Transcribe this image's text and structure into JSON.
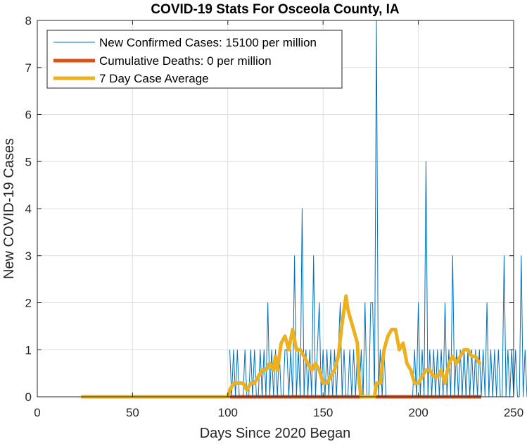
{
  "chart_data": {
    "type": "line",
    "title": "COVID-19 Stats For Osceola County, IA",
    "xlabel": "Days Since 2020 Began",
    "ylabel": "New COVID-19 Cases",
    "xlim": [
      0,
      250
    ],
    "ylim": [
      0,
      8
    ],
    "xticks": [
      0,
      50,
      100,
      150,
      200,
      250
    ],
    "yticks": [
      0,
      1,
      2,
      3,
      4,
      5,
      6,
      7,
      8
    ],
    "grid": true,
    "legend_position": "top-left",
    "series": [
      {
        "name": "New Confirmed Cases: 15100 per million",
        "color": "#0072BD",
        "x_start": 101,
        "values": [
          1,
          0,
          1,
          0,
          1,
          0,
          0,
          0,
          1,
          0,
          0,
          1,
          0,
          1,
          0,
          0,
          1,
          0,
          1,
          0,
          2,
          0,
          1,
          0,
          1,
          0,
          1,
          0,
          0,
          1,
          1,
          0,
          1,
          0,
          3,
          0,
          1,
          0,
          4,
          0,
          1,
          0,
          1,
          0,
          3,
          0,
          1,
          2,
          0,
          1,
          0,
          1,
          0,
          1,
          0,
          1,
          0,
          1,
          2,
          0,
          1,
          0,
          0,
          1,
          0,
          1,
          0,
          1,
          0,
          1,
          0,
          2,
          0,
          0,
          2,
          2,
          0,
          8,
          0,
          1,
          0,
          1,
          0,
          0,
          0,
          0,
          0,
          0,
          0,
          0,
          0,
          0,
          0,
          0,
          0,
          0,
          0,
          1,
          0,
          2,
          0,
          1,
          0,
          5,
          0,
          1,
          0,
          1,
          0,
          1,
          0,
          1,
          0,
          2,
          0,
          1,
          0,
          3,
          0,
          1,
          0,
          1,
          0,
          1,
          0,
          1,
          0,
          1,
          0,
          1,
          0,
          1,
          0,
          1,
          0,
          2,
          0,
          1,
          0,
          1,
          0,
          1,
          0,
          0,
          3,
          0,
          1,
          0,
          1,
          0,
          1,
          0,
          0,
          3,
          0,
          1,
          0,
          1,
          0,
          1,
          0
        ]
      },
      {
        "name": "Cumulative Deaths: 0 per million",
        "color": "#D95319",
        "x": [
          101,
          233
        ],
        "values": [
          0,
          0
        ]
      },
      {
        "name": "7 Day Case Average",
        "color": "#EDB120",
        "x": [
          23,
          100,
          101,
          103,
          108,
          110,
          112,
          114,
          116,
          118,
          120,
          122,
          124,
          125,
          126,
          128,
          130,
          132,
          134,
          136,
          138,
          140,
          142,
          144,
          146,
          148,
          150,
          152,
          154,
          156,
          158,
          160,
          162,
          163,
          164,
          166,
          168,
          169,
          170,
          172,
          175,
          177,
          178,
          180,
          182,
          184,
          186,
          188,
          190,
          192,
          194,
          196,
          198,
          200,
          202,
          204,
          206,
          208,
          210,
          212,
          214,
          216,
          218,
          220,
          222,
          224,
          226,
          228,
          230,
          232,
          233
        ],
        "values": [
          0,
          0,
          0.14,
          0.29,
          0.29,
          0.14,
          0.29,
          0.29,
          0.43,
          0.57,
          0.57,
          0.71,
          0.57,
          0.86,
          0.57,
          1.14,
          1.29,
          1.0,
          1.43,
          1.0,
          1.0,
          0.86,
          0.71,
          0.57,
          0.71,
          0.57,
          0.29,
          0.29,
          0.43,
          0.57,
          0.86,
          1.57,
          2.14,
          1.86,
          1.71,
          1.43,
          1.14,
          0.29,
          0,
          0,
          0,
          0,
          0.29,
          0.29,
          1.0,
          1.29,
          1.43,
          1.43,
          1.0,
          1.14,
          0.71,
          0.57,
          0.29,
          0.29,
          0.43,
          0.57,
          0.57,
          0.43,
          0.43,
          0.57,
          0.29,
          0.71,
          0.86,
          0.71,
          0.86,
          1.0,
          1.0,
          0.86,
          0.86,
          0.71,
          0.71
        ]
      }
    ]
  }
}
